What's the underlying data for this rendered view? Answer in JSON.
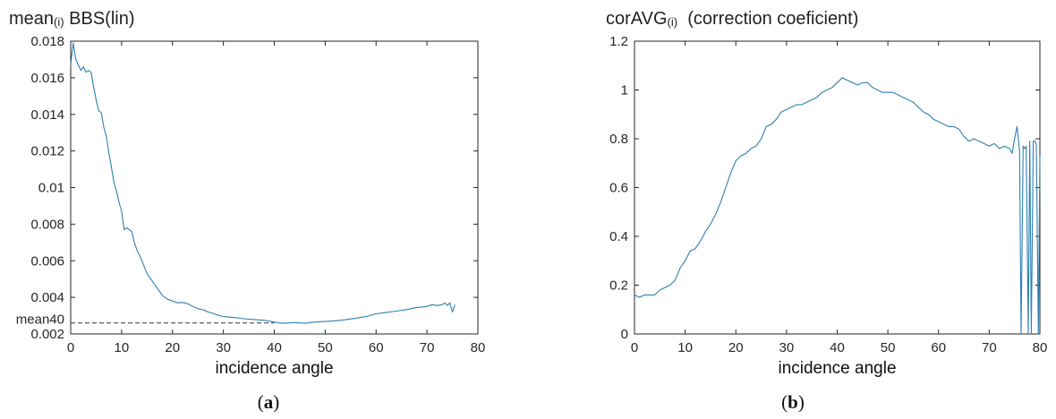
{
  "chart_data": [
    {
      "type": "line",
      "title": "mean",
      "title_sub": "(i)",
      "title_tail": "BBS(lin)",
      "xlabel": "incidence angle",
      "ylabel": "",
      "caption": "a",
      "xlim": [
        0,
        80
      ],
      "ylim": [
        0.002,
        0.018
      ],
      "xticks": [
        0,
        10,
        20,
        30,
        40,
        50,
        60,
        70,
        80
      ],
      "yticks": [
        0.002,
        0.004,
        0.006,
        0.008,
        0.01,
        0.012,
        0.014,
        0.016,
        0.018
      ],
      "ytick_labels": [
        "0.002",
        "0.004",
        "0.006",
        "0.008",
        "0.01",
        "0.012",
        "0.014",
        "0.016",
        "0.018"
      ],
      "grid": false,
      "line_color": "#2f7fb0",
      "annotation": {
        "label": "mean40",
        "x": 40,
        "y": 0.0026,
        "style": "dashed"
      },
      "series": [
        {
          "x": [
            0,
            0.5,
            1,
            1.5,
            2,
            2.5,
            3,
            3.5,
            4,
            4.5,
            5,
            5.5,
            6,
            6.5,
            7,
            7.5,
            8,
            8.5,
            9,
            9.5,
            10,
            10.5,
            11,
            11.5,
            12,
            12.5,
            13,
            13.5,
            14,
            15,
            16,
            17,
            18,
            19,
            20,
            21,
            22,
            23,
            24,
            25,
            26,
            27,
            28,
            29,
            30,
            32,
            34,
            36,
            38,
            40,
            41,
            42,
            44,
            46,
            48,
            50,
            52,
            54,
            56,
            58,
            60,
            62,
            64,
            66,
            68,
            70,
            71,
            72,
            73,
            73.5,
            74,
            74.5,
            75,
            75.5
          ],
          "values": [
            0.0167,
            0.0179,
            0.017,
            0.0167,
            0.0164,
            0.0166,
            0.0163,
            0.0164,
            0.0163,
            0.0155,
            0.0148,
            0.0142,
            0.0141,
            0.0133,
            0.0128,
            0.0119,
            0.0111,
            0.0103,
            0.0098,
            0.0092,
            0.0087,
            0.0077,
            0.0078,
            0.0077,
            0.0076,
            0.007,
            0.0066,
            0.0063,
            0.006,
            0.0053,
            0.0049,
            0.0045,
            0.0041,
            0.0039,
            0.0038,
            0.0037,
            0.00372,
            0.00365,
            0.0035,
            0.00338,
            0.00332,
            0.0032,
            0.00312,
            0.00302,
            0.00295,
            0.0029,
            0.00283,
            0.00279,
            0.00275,
            0.00265,
            0.0026,
            0.00258,
            0.00262,
            0.00258,
            0.00265,
            0.00268,
            0.00272,
            0.00278,
            0.00286,
            0.00295,
            0.0031,
            0.00318,
            0.00325,
            0.00333,
            0.00345,
            0.0035,
            0.0036,
            0.00355,
            0.0036,
            0.0037,
            0.00355,
            0.0037,
            0.0032,
            0.0036
          ]
        }
      ]
    },
    {
      "type": "line",
      "title": "corAVG",
      "title_sub": "(i)",
      "title_tail": "(correction coeficient)",
      "xlabel": "incidence angle",
      "ylabel": "",
      "caption": "b",
      "xlim": [
        0,
        80
      ],
      "ylim": [
        0,
        1.2
      ],
      "xticks": [
        0,
        10,
        20,
        30,
        40,
        50,
        60,
        70,
        80
      ],
      "yticks": [
        0,
        0.2,
        0.4,
        0.6,
        0.8,
        1,
        1.2
      ],
      "ytick_labels": [
        "0",
        "0.2",
        "0.4",
        "0.6",
        "0.8",
        "1",
        "1.2"
      ],
      "grid": false,
      "line_color": "#2f7fb0",
      "series": [
        {
          "x": [
            0,
            1,
            2,
            3,
            4,
            5,
            6,
            7,
            8,
            9,
            10,
            11,
            12,
            13,
            14,
            15,
            16,
            17,
            18,
            19,
            20,
            21,
            22,
            23,
            24,
            25,
            26,
            27,
            28,
            29,
            30,
            31,
            32,
            33,
            34,
            35,
            36,
            37,
            38,
            39,
            40,
            41,
            42,
            43,
            44,
            45,
            46,
            47,
            48,
            49,
            50,
            51,
            52,
            53,
            54,
            55,
            56,
            57,
            58,
            59,
            60,
            61,
            62,
            63,
            64,
            65,
            66,
            67,
            68,
            69,
            70,
            71,
            72,
            73,
            74,
            74.5,
            75,
            75.5,
            76,
            76.3,
            76.7,
            77,
            77.3,
            77.7,
            78,
            78.3,
            78.7,
            79,
            79.3,
            79.7,
            80
          ],
          "values": [
            0.16,
            0.15,
            0.16,
            0.16,
            0.16,
            0.18,
            0.19,
            0.2,
            0.22,
            0.27,
            0.3,
            0.34,
            0.35,
            0.38,
            0.42,
            0.45,
            0.49,
            0.54,
            0.6,
            0.66,
            0.71,
            0.73,
            0.74,
            0.76,
            0.77,
            0.8,
            0.85,
            0.86,
            0.88,
            0.91,
            0.92,
            0.93,
            0.94,
            0.94,
            0.95,
            0.96,
            0.97,
            0.99,
            1.0,
            1.01,
            1.03,
            1.05,
            1.04,
            1.03,
            1.02,
            1.03,
            1.03,
            1.01,
            1.0,
            0.99,
            0.99,
            0.99,
            0.98,
            0.97,
            0.96,
            0.95,
            0.93,
            0.91,
            0.9,
            0.88,
            0.87,
            0.86,
            0.85,
            0.85,
            0.84,
            0.81,
            0.79,
            0.8,
            0.79,
            0.78,
            0.77,
            0.78,
            0.76,
            0.77,
            0.76,
            0.74,
            0.8,
            0.85,
            0.75,
            0.0,
            0.77,
            0.76,
            0.77,
            0.0,
            0.79,
            0.0,
            0.79,
            0.79,
            0.78,
            0.0,
            0.73
          ]
        }
      ]
    }
  ]
}
